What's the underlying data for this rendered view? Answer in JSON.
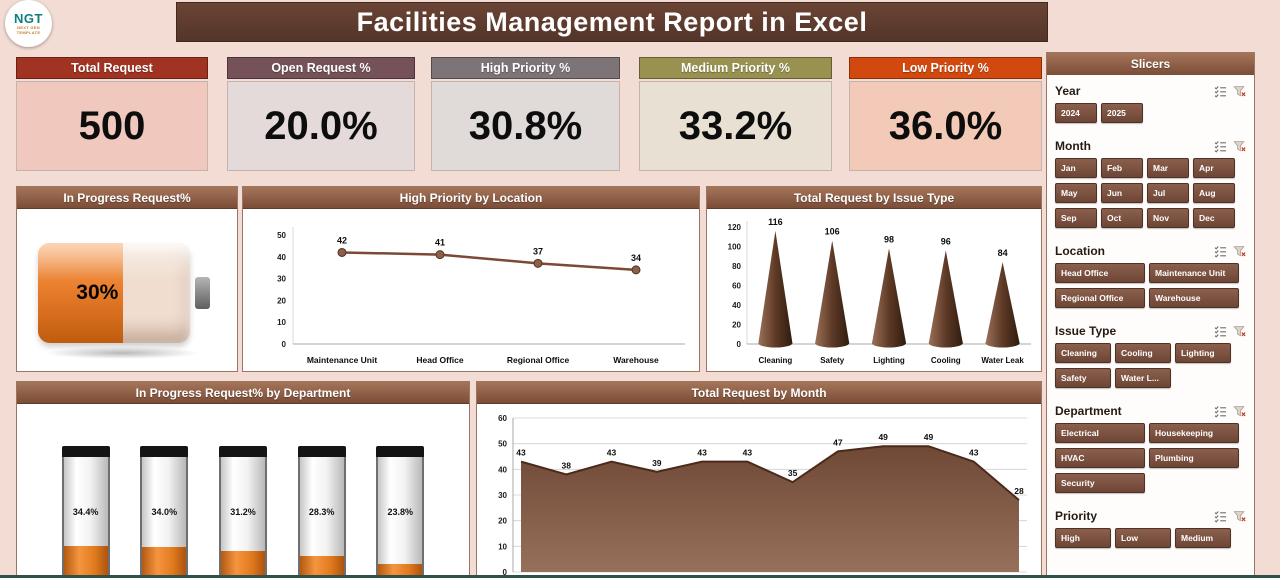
{
  "logo": {
    "brand": "NGT",
    "tagline": "NEXT GEN TEMPLATE"
  },
  "header": {
    "title": "Facilities Management Report in Excel"
  },
  "kpis": [
    {
      "label": "Total Request",
      "value": "500",
      "header_color": "#a03322",
      "body_color": "#f0c8be"
    },
    {
      "label": "Open Request %",
      "value": "20.0%",
      "header_color": "#755259",
      "body_color": "#e3dad9"
    },
    {
      "label": "High Priority %",
      "value": "30.8%",
      "header_color": "#7d7478",
      "body_color": "#e0dad9"
    },
    {
      "label": "Medium Priority %",
      "value": "33.2%",
      "header_color": "#989150",
      "body_color": "#e7e0d3"
    },
    {
      "label": "Low Priority %",
      "value": "36.0%",
      "header_color": "#d1490f",
      "body_color": "#f3cab7"
    }
  ],
  "chart_data": [
    {
      "type": "gauge",
      "title": "In Progress Request%",
      "value": 30,
      "label": "30%"
    },
    {
      "type": "line",
      "title": "High Priority by Location",
      "categories": [
        "Maintenance Unit",
        "Head Office",
        "Regional Office",
        "Warehouse"
      ],
      "values": [
        42,
        41,
        37,
        34
      ],
      "ylim": [
        0,
        50
      ],
      "yticks": [
        0,
        10,
        20,
        30,
        40,
        50
      ]
    },
    {
      "type": "cone",
      "title": "Total Request by Issue Type",
      "categories": [
        "Cleaning",
        "Safety",
        "Lighting",
        "Cooling",
        "Water Leak"
      ],
      "values": [
        116,
        106,
        98,
        96,
        84
      ],
      "ylim": [
        0,
        120
      ],
      "yticks": [
        0,
        20,
        40,
        60,
        80,
        100,
        120
      ]
    },
    {
      "type": "battery-bars",
      "title": "In Progress Request% by Department",
      "labels": [
        "34.4%",
        "34.0%",
        "31.2%",
        "28.3%",
        "23.8%"
      ],
      "values": [
        34.4,
        34.0,
        31.2,
        28.3,
        23.8
      ]
    },
    {
      "type": "area",
      "title": "Total Request by Month",
      "values": [
        43,
        38,
        43,
        39,
        43,
        43,
        35,
        47,
        49,
        49,
        43,
        28
      ],
      "ylim": [
        0,
        60
      ],
      "yticks": [
        0,
        10,
        20,
        30,
        40,
        50,
        60
      ]
    }
  ],
  "slicers": {
    "title": "Slicers",
    "sections": [
      {
        "label": "Year",
        "buttons": [
          "2024",
          "2025"
        ]
      },
      {
        "label": "Month",
        "buttons": [
          "Jan",
          "Feb",
          "Mar",
          "Apr",
          "May",
          "Jun",
          "Jul",
          "Aug",
          "Sep",
          "Oct",
          "Nov",
          "Dec"
        ]
      },
      {
        "label": "Location",
        "buttons": [
          "Head Office",
          "Maintenance Unit",
          "Regional Office",
          "Warehouse"
        ]
      },
      {
        "label": "Issue Type",
        "buttons": [
          "Cleaning",
          "Cooling",
          "Lighting",
          "Safety",
          "Water L..."
        ]
      },
      {
        "label": "Department",
        "buttons": [
          "Electrical",
          "Housekeeping",
          "HVAC",
          "Plumbing",
          "Security"
        ]
      },
      {
        "label": "Priority",
        "buttons": [
          "High",
          "Low",
          "Medium"
        ]
      }
    ]
  },
  "accent_colors": {
    "panel_brown": "#7b4d37",
    "slicer_button": "#6e4636",
    "page_bg": "#f2dcd4",
    "orange_fill": "#e97e2c"
  }
}
